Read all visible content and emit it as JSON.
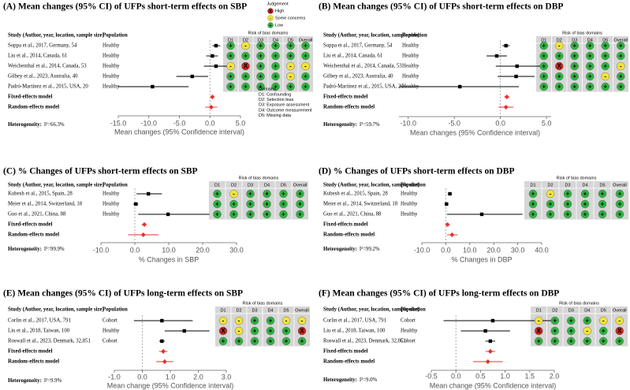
{
  "chart_data": [
    {
      "type": "forest",
      "title": "(A) Mean changes (95% CI) of UFPs short-term effects on SBP",
      "study_header": "Study (Author, year, location, sample size)",
      "population_header": "Population",
      "studies": [
        {
          "name": "Soppa et al., 2017, Germany, 54",
          "population": "Healthy",
          "value": 1.0,
          "lo": 0.4,
          "hi": 1.7,
          "rob": [
            "+",
            "-",
            "+",
            "+",
            "+",
            "+"
          ]
        },
        {
          "name": "Liu et al., 2014, Canada, 61",
          "population": "Healthy",
          "value": 0.4,
          "lo": -0.6,
          "hi": 1.3,
          "rob": [
            "+",
            "+",
            "+",
            "+",
            "+",
            "+"
          ]
        },
        {
          "name": "Weichenthal et al., 2014, Canada, 53",
          "population": "Healthy",
          "value": 1.0,
          "lo": -1.0,
          "hi": 3.0,
          "rob": [
            "-",
            "X",
            "+",
            "+",
            "-",
            "-"
          ]
        },
        {
          "name": "Gilbey et al., 2023, Australia, 40",
          "population": "Healthy",
          "value": -2.9,
          "lo": -5.5,
          "hi": -0.3,
          "rob": [
            "+",
            "+",
            "+",
            "+",
            "-",
            "+"
          ]
        },
        {
          "name": "Padró-Martínez et al., 2015, USA, 20",
          "population": "Healthy",
          "value": -9.4,
          "lo": -15.0,
          "hi": -3.5,
          "rob": [
            "+",
            "+",
            "+",
            "+",
            "+",
            "+"
          ]
        }
      ],
      "models": [
        {
          "name": "Fixed-effects model",
          "value": 0.4,
          "lo": 0.1,
          "hi": 0.7
        },
        {
          "name": "Random-effects model",
          "value": 0.2,
          "lo": -0.8,
          "hi": 1.2
        }
      ],
      "heterogeneity_label": "Heterogeneity:",
      "heterogeneity": "I²=66.3%",
      "xlabel": "Mean changes (95% Confidence interval)",
      "xlim": [
        -15,
        5
      ],
      "xticks": [
        {
          "value": -15,
          "label": "-15.0"
        },
        {
          "value": -10,
          "label": "-10.0"
        },
        {
          "value": -5,
          "label": "-5.0"
        },
        {
          "value": 0,
          "label": "0.0"
        },
        {
          "value": 5,
          "label": "5.0"
        }
      ],
      "point_color": "#000000",
      "model_color": "#e8302a",
      "rob_title": "Risk of bias domains",
      "rob_columns": [
        "D1",
        "D2",
        "D3",
        "D4",
        "D5",
        "Overall"
      ],
      "judgement_title": "Judgement",
      "judgement": [
        {
          "symbol": "X",
          "label": "High",
          "color": "#c8251d"
        },
        {
          "symbol": "-",
          "label": "Some concerns",
          "color": "#f2e33c"
        },
        {
          "symbol": "+",
          "label": "Low",
          "color": "#2fb340"
        }
      ],
      "domains_title": "Domains:",
      "domains": [
        "D1: Confounding",
        "D2: Selection bias",
        "D3: Exposure assessment",
        "D4: Outcome measurement",
        "D5: Missing data"
      ]
    },
    {
      "type": "forest",
      "title": "(B) Mean changes (95% CI) of UFPs short-term effects on DBP",
      "study_header": "Study (Author, year, location, sample size)",
      "population_header": "Population",
      "studies": [
        {
          "name": "Soppa et al., 2017, Germany, 54",
          "population": "Healthy",
          "value": 0.6,
          "lo": 0.2,
          "hi": 1.0,
          "rob": [
            "+",
            "-",
            "+",
            "+",
            "+",
            "+"
          ]
        },
        {
          "name": "Liu et al., 2014, Canada, 61",
          "population": "Healthy",
          "value": -0.4,
          "lo": -1.5,
          "hi": 0.7,
          "rob": [
            "+",
            "+",
            "+",
            "+",
            "+",
            "+"
          ]
        },
        {
          "name": "Weichenthal et al., 2014, Canada, 53",
          "population": "Healthy",
          "value": 1.8,
          "lo": -0.5,
          "hi": 4.5,
          "rob": [
            "+",
            "X",
            "+",
            "+",
            "+",
            "-"
          ]
        },
        {
          "name": "Gilbey et al., 2023, Australia, 40",
          "population": "Healthy",
          "value": 1.7,
          "lo": -0.3,
          "hi": 3.7,
          "rob": [
            "+",
            "+",
            "+",
            "+",
            "-",
            "+"
          ]
        },
        {
          "name": "Padró-Martínez et al., 2015, USA, 20",
          "population": "Healthy",
          "value": -4.4,
          "lo": -11.0,
          "hi": 2.0,
          "rob": [
            "+",
            "+",
            "+",
            "+",
            "+",
            "+"
          ]
        }
      ],
      "models": [
        {
          "name": "Fixed-effects model",
          "value": 0.7,
          "lo": 0.4,
          "hi": 1.0
        },
        {
          "name": "Random-effects model",
          "value": 0.6,
          "lo": -0.2,
          "hi": 1.4
        }
      ],
      "heterogeneity_label": "Heterogeneity:",
      "heterogeneity": "I²=59.7%",
      "xlabel": "Mean changes (95% Confidence interval)",
      "xlim": [
        -11,
        5.5
      ],
      "xticks": [
        {
          "value": -10,
          "label": "-10.0"
        },
        {
          "value": -5,
          "label": "-5.0"
        },
        {
          "value": 0,
          "label": "0.0"
        },
        {
          "value": 5,
          "label": "5.0"
        }
      ],
      "point_color": "#000000",
      "model_color": "#e8302a",
      "rob_title": "Risk of bias domains",
      "rob_columns": [
        "D1",
        "D2",
        "D3",
        "D4",
        "D5",
        "Overall"
      ]
    },
    {
      "type": "forest",
      "title": "(C) % Changes of UFPs short-term effects on SBP",
      "study_header": "Study (Author, year, location, sample size)",
      "population_header": "Population",
      "studies": [
        {
          "name": "Kubesh et al., 2015, Spain, 28",
          "population": "Healthy",
          "value": 4.0,
          "lo": 0.5,
          "hi": 8.0,
          "rob": [
            "+",
            "-",
            "+",
            "+",
            "+",
            "+"
          ]
        },
        {
          "name": "Meier et al., 2014, Switzerland, 18",
          "population": "Healthy",
          "value": 0.3,
          "lo": -0.5,
          "hi": 1.0,
          "rob": [
            "+",
            "+",
            "+",
            "+",
            "+",
            "+"
          ]
        },
        {
          "name": "Guo et al., 2021, China, 88",
          "population": "Healthy",
          "value": 9.8,
          "lo": 1.0,
          "hi": 22.0,
          "rob": [
            "+",
            "+",
            "+",
            "+",
            "+",
            "+"
          ]
        }
      ],
      "models": [
        {
          "name": "Fixed-effects model",
          "value": 2.8,
          "lo": 2.0,
          "hi": 3.5
        },
        {
          "name": "Random-effects model",
          "value": 2.5,
          "lo": -2.0,
          "hi": 7.0
        }
      ],
      "heterogeneity_label": "Heterogeneity:",
      "heterogeneity": "I²=99.9%",
      "xlabel": "% Changes in SBP",
      "xlim": [
        -10,
        30
      ],
      "xticks": [
        {
          "value": -10,
          "label": "-10.0"
        },
        {
          "value": 0,
          "label": "0.0"
        },
        {
          "value": 10,
          "label": "10.0"
        },
        {
          "value": 20,
          "label": "20.0"
        },
        {
          "value": 30,
          "label": "30.0"
        }
      ],
      "point_color": "#000000",
      "model_color": "#e8302a",
      "rob_title": "Risk of bias domains",
      "rob_columns": [
        "D1",
        "D2",
        "D3",
        "D4",
        "D5",
        "Overall"
      ]
    },
    {
      "type": "forest",
      "title": "(D) % Changes of UFPs short-term effects on DBP",
      "study_header": "Study (Author, year, location, sample size)",
      "population_header": "Population",
      "studies": [
        {
          "name": "Kubesh et al., 2015, Spain, 28",
          "population": "Healthy",
          "value": 1.7,
          "lo": 0.8,
          "hi": 2.6,
          "rob": [
            "+",
            "-",
            "+",
            "+",
            "+",
            "+"
          ]
        },
        {
          "name": "Meier et al., 2014, Switzerland, 18",
          "population": "Healthy",
          "value": 0.3,
          "lo": -0.5,
          "hi": 1.0,
          "rob": [
            "+",
            "+",
            "+",
            "+",
            "+",
            "+"
          ]
        },
        {
          "name": "Guo et al., 2021, China, 88",
          "population": "Healthy",
          "value": 15.0,
          "lo": 0.5,
          "hi": 32.0,
          "rob": [
            "+",
            "+",
            "+",
            "+",
            "+",
            "+"
          ]
        }
      ],
      "models": [
        {
          "name": "Fixed-effects model",
          "value": 0.7,
          "lo": 0.4,
          "hi": 1.0
        },
        {
          "name": "Random-effects model",
          "value": 2.6,
          "lo": 0.5,
          "hi": 5.0
        }
      ],
      "heterogeneity_label": "Heterogeneity:",
      "heterogeneity": "I²=99.2%",
      "xlabel": "% Changes in DBP",
      "xlim": [
        -10,
        40
      ],
      "xticks": [
        {
          "value": -10,
          "label": "-10.0"
        },
        {
          "value": 0,
          "label": "0.0"
        },
        {
          "value": 10,
          "label": "10.0"
        },
        {
          "value": 20,
          "label": "20.0"
        },
        {
          "value": 30,
          "label": "30.0"
        },
        {
          "value": 40,
          "label": "40.0"
        }
      ],
      "point_color": "#000000",
      "model_color": "#e8302a",
      "rob_title": "Risk of bias domains",
      "rob_columns": [
        "D1",
        "D2",
        "D3",
        "D4",
        "D5",
        "Overall"
      ]
    },
    {
      "type": "forest",
      "title": "(E) Mean changes (95% CI) of UFPs long-term effects on SBP",
      "study_header": "Study (Author, year, location, sample size)",
      "population_header": "Population",
      "studies": [
        {
          "name": "Corlin et al., 2017, USA, 791",
          "population": "Cohort",
          "value": 0.7,
          "lo": -0.3,
          "hi": 1.8,
          "rob": [
            "-",
            "-",
            "+",
            "+",
            "-",
            "-"
          ]
        },
        {
          "name": "Liu et al., 2018, Taiwan, 100",
          "population": "Healthy",
          "value": 1.5,
          "lo": 0.8,
          "hi": 2.4,
          "rob": [
            "X",
            "-",
            "+",
            "+",
            "+",
            "X"
          ]
        },
        {
          "name": "Roswall et al., 2023, Denmark, 32,851",
          "population": "Cohort",
          "value": 0.7,
          "lo": 0.6,
          "hi": 0.8,
          "rob": [
            "+",
            "+",
            "+",
            "+",
            "+",
            "+"
          ]
        }
      ],
      "models": [
        {
          "name": "Fixed-effects model",
          "value": 0.75,
          "lo": 0.6,
          "hi": 0.9
        },
        {
          "name": "Random-effects model",
          "value": 0.8,
          "lo": 0.5,
          "hi": 1.1
        }
      ],
      "heterogeneity_label": "Heterogeneity:",
      "heterogeneity": "I²=9.9%",
      "xlabel": "Mean change (95% Confidence interval)",
      "xlim": [
        -1,
        3
      ],
      "xticks": [
        {
          "value": -1,
          "label": "-1.0"
        },
        {
          "value": 0,
          "label": "0.0"
        },
        {
          "value": 1,
          "label": "1.0"
        },
        {
          "value": 2,
          "label": "2.0"
        },
        {
          "value": 3,
          "label": "3.0"
        }
      ],
      "point_color": "#000000",
      "model_color": "#e8302a",
      "rob_title": "Risk of bias domains",
      "rob_columns": [
        "D1",
        "D2",
        "D3",
        "D4",
        "D5",
        "Overall"
      ]
    },
    {
      "type": "forest",
      "title": "(F) Mean changes (95% CI) of UFPs long-term effects on DBP",
      "study_header": "Study (Author, year, location, sample size)",
      "population_header": "Population",
      "studies": [
        {
          "name": "Corlin et al., 2017, USA, 791",
          "population": "Cohort",
          "value": 0.75,
          "lo": -0.25,
          "hi": 2.0,
          "rob": [
            "-",
            "+",
            "+",
            "+",
            "-",
            "-"
          ]
        },
        {
          "name": "Liu et al., 2018, Taiwan, 100",
          "population": "Healthy",
          "value": 0.6,
          "lo": 0.1,
          "hi": 1.1,
          "rob": [
            "X",
            "+",
            "+",
            "-",
            "+",
            "X"
          ]
        },
        {
          "name": "Roswall et al., 2023, Denmark, 32,851",
          "population": "Cohort",
          "value": 0.7,
          "lo": 0.6,
          "hi": 0.8,
          "rob": [
            "+",
            "+",
            "+",
            "+",
            "+",
            "+"
          ]
        }
      ],
      "models": [
        {
          "name": "Fixed-effects model",
          "value": 0.7,
          "lo": 0.6,
          "hi": 0.8
        },
        {
          "name": "Random-effects model",
          "value": 0.65,
          "lo": 0.35,
          "hi": 0.95
        }
      ],
      "heterogeneity_label": "Heterogeneity:",
      "heterogeneity": "I²=9.0%",
      "xlabel": "Mean change (95% Confidence interval)",
      "xlim": [
        -0.5,
        2
      ],
      "xticks": [
        {
          "value": -0.5,
          "label": "-0.5"
        },
        {
          "value": 0,
          "label": "0.0"
        },
        {
          "value": 0.5,
          "label": "0.5"
        },
        {
          "value": 1,
          "label": "1.0"
        },
        {
          "value": 1.5,
          "label": "1.5"
        },
        {
          "value": 2,
          "label": "2.0"
        }
      ],
      "point_color": "#000000",
      "model_color": "#e8302a",
      "rob_title": "Risk of bias domains",
      "rob_columns": [
        "D1",
        "D2",
        "D3",
        "D4",
        "D5",
        "Overall"
      ]
    }
  ]
}
